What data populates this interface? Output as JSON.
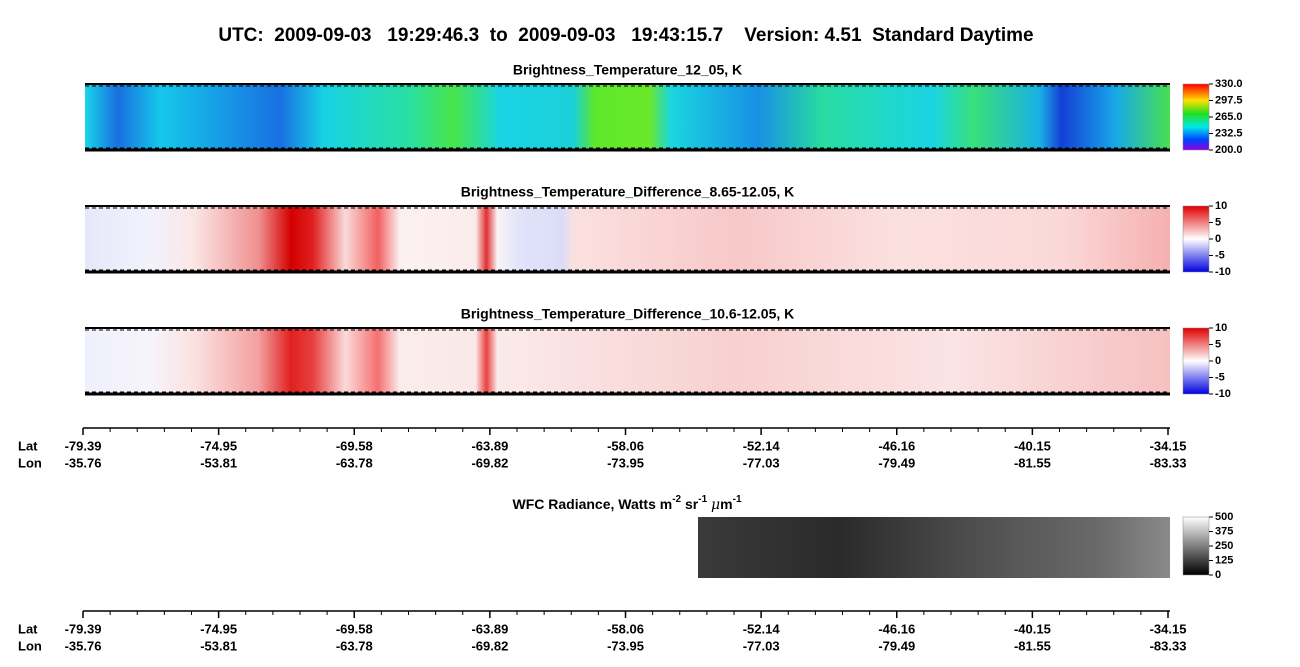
{
  "title": "UTC:  2009-09-03   19:29:46.3  to  2009-09-03   19:43:15.7    Version: 4.51  Standard Daytime",
  "panels": [
    {
      "title": "Brightness_Temperature_12_05, K",
      "colorbar_ticks": [
        "330.0",
        "297.5",
        "265.0",
        "232.5",
        "200.0"
      ]
    },
    {
      "title": "Brightness_Temperature_Difference_8.65-12.05, K",
      "colorbar_ticks": [
        "10",
        "5",
        "0",
        "-5",
        "-10"
      ]
    },
    {
      "title": "Brightness_Temperature_Difference_10.6-12.05, K",
      "colorbar_ticks": [
        "10",
        "5",
        "0",
        "-5",
        "-10"
      ]
    }
  ],
  "wfc_panel": {
    "title_parts": [
      "WFC Radiance, Watts m",
      "-2",
      " sr",
      "-1",
      " ",
      "μ",
      "m",
      "-1"
    ],
    "colorbar_ticks": [
      "500",
      "375",
      "250",
      "125",
      "0"
    ]
  },
  "axes": [
    {
      "lat_label": "Lat",
      "lon_label": "Lon",
      "lat": [
        "-79.39",
        "-74.95",
        "-69.58",
        "-63.89",
        "-58.06",
        "-52.14",
        "-46.16",
        "-40.15",
        "-34.15"
      ],
      "lon": [
        "-35.76",
        "-53.81",
        "-63.78",
        "-69.82",
        "-73.95",
        "-77.03",
        "-79.49",
        "-81.55",
        "-83.33"
      ]
    },
    {
      "lat_label": "Lat",
      "lon_label": "Lon",
      "lat": [
        "-79.39",
        "-74.95",
        "-69.58",
        "-63.89",
        "-58.06",
        "-52.14",
        "-46.16",
        "-40.15",
        "-34.15"
      ],
      "lon": [
        "-35.76",
        "-53.81",
        "-63.78",
        "-69.82",
        "-73.95",
        "-77.03",
        "-79.49",
        "-81.55",
        "-83.33"
      ]
    }
  ]
}
